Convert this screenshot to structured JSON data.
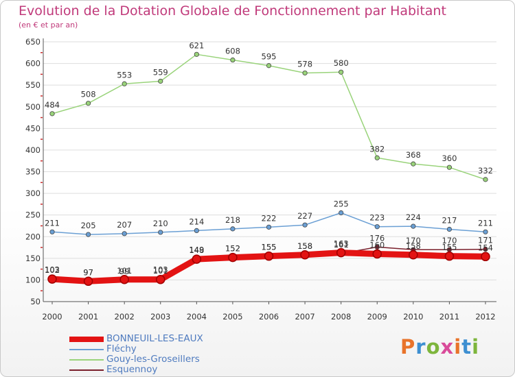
{
  "header": {
    "title": "Evolution de la Dotation Globale de Fonctionnement par Habitant",
    "subtitle": "(en € et par an)"
  },
  "logo": {
    "text": "Proxiti",
    "letter_colors": [
      "#e8732a",
      "#3d8fd1",
      "#7db53c",
      "#d94b9a",
      "#e8732a",
      "#3d8fd1",
      "#7db53c"
    ]
  },
  "colors": {
    "axis_text": "#333333",
    "grid": "#dddddd",
    "tick_red": "#cc2b2b"
  },
  "chart_data": {
    "type": "line",
    "title": "Evolution de la Dotation Globale de Fonctionnement par Habitant",
    "subtitle": "(en € et par an)",
    "xlabel": "",
    "ylabel": "",
    "x": [
      "2000",
      "2001",
      "2002",
      "2003",
      "2004",
      "2005",
      "2006",
      "2007",
      "2008",
      "2009",
      "2010",
      "2011",
      "2012"
    ],
    "ylim": [
      50,
      650
    ],
    "yticks": [
      50,
      100,
      150,
      200,
      250,
      300,
      350,
      400,
      450,
      500,
      550,
      600,
      650
    ],
    "grid": true,
    "legend_position": "bottom-left",
    "series": [
      {
        "name": "Esquennoy",
        "color": "#7a1f2b",
        "style": "thin",
        "values": [
          103,
          97,
          99,
          103,
          149,
          152,
          155,
          158,
          161,
          176,
          170,
          170,
          171
        ]
      },
      {
        "name": "Gouy-les-Groseillers",
        "color": "#99d37a",
        "style": "thin",
        "values": [
          484,
          508,
          553,
          559,
          621,
          608,
          595,
          578,
          580,
          382,
          368,
          360,
          332
        ]
      },
      {
        "name": "Fléchy",
        "color": "#6a9fd4",
        "style": "thin",
        "values": [
          211,
          205,
          207,
          210,
          214,
          218,
          222,
          227,
          255,
          223,
          224,
          217,
          211
        ]
      },
      {
        "name": "BONNEUIL-LES-EAUX",
        "color": "#e31313",
        "style": "thick",
        "values": [
          102,
          97,
          101,
          101,
          148,
          152,
          155,
          158,
          163,
          160,
          158,
          155,
          154
        ]
      }
    ],
    "legend_order": [
      "BONNEUIL-LES-EAUX",
      "Fléchy",
      "Gouy-les-Groseillers",
      "Esquennoy"
    ]
  }
}
